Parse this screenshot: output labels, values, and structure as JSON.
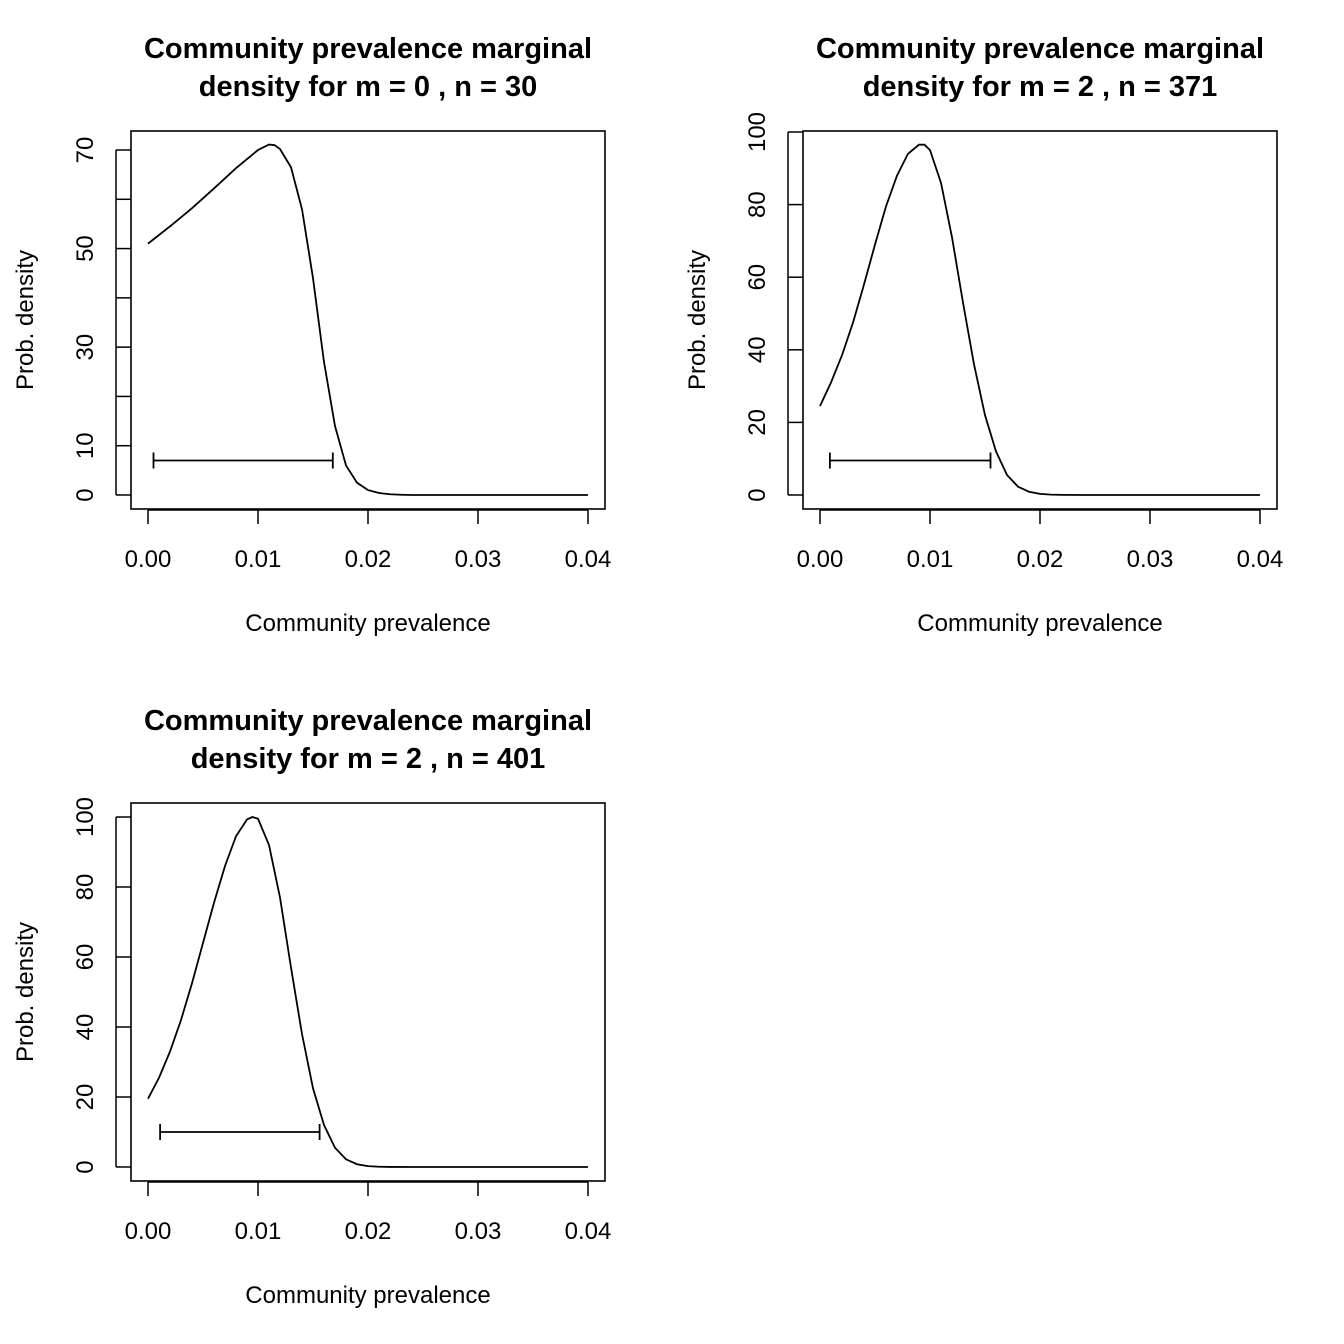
{
  "chart_data": [
    {
      "type": "line",
      "title_lines": [
        "Community prevalence marginal",
        "density for m = 0 , n = 30"
      ],
      "xlabel": "Community prevalence",
      "ylabel": "Prob. density",
      "xlim": [
        0.0,
        0.04
      ],
      "ylim": [
        0,
        70
      ],
      "xticks": [
        0.0,
        0.01,
        0.02,
        0.03,
        0.04
      ],
      "xtick_labels": [
        "0.00",
        "0.01",
        "0.02",
        "0.03",
        "0.04"
      ],
      "yticks": [
        0,
        10,
        20,
        30,
        40,
        50,
        60,
        70
      ],
      "ytick_labels": [
        "0",
        "10",
        "",
        "30",
        "",
        "50",
        "",
        "70"
      ],
      "series": [
        {
          "x": [
            0.0,
            0.002,
            0.004,
            0.006,
            0.008,
            0.01,
            0.011,
            0.0115,
            0.012,
            0.013,
            0.014,
            0.015,
            0.016,
            0.017,
            0.018,
            0.019,
            0.02,
            0.021,
            0.022,
            0.023,
            0.024,
            0.026,
            0.03,
            0.035,
            0.04
          ],
          "y": [
            51,
            54.5,
            58.2,
            62.2,
            66.3,
            70.0,
            71.1,
            71.0,
            70.2,
            66.5,
            58.0,
            44.0,
            27.0,
            14.0,
            6.0,
            2.5,
            1.0,
            0.4,
            0.15,
            0.05,
            0.0,
            0.0,
            0.0,
            0.0,
            0.0
          ]
        }
      ],
      "interval": {
        "lo": 0.0005,
        "hi": 0.0168,
        "y": 7
      }
    },
    {
      "type": "line",
      "title_lines": [
        "Community prevalence marginal",
        "density for m = 2 , n = 371"
      ],
      "xlabel": "Community prevalence",
      "ylabel": "Prob. density",
      "xlim": [
        0.0,
        0.04
      ],
      "ylim": [
        0,
        100
      ],
      "xticks": [
        0.0,
        0.01,
        0.02,
        0.03,
        0.04
      ],
      "xtick_labels": [
        "0.00",
        "0.01",
        "0.02",
        "0.03",
        "0.04"
      ],
      "yticks": [
        0,
        20,
        40,
        60,
        80,
        100
      ],
      "ytick_labels": [
        "0",
        "20",
        "40",
        "60",
        "80",
        "100"
      ],
      "series": [
        {
          "x": [
            0.0,
            0.001,
            0.002,
            0.003,
            0.004,
            0.005,
            0.006,
            0.007,
            0.008,
            0.009,
            0.0095,
            0.01,
            0.011,
            0.012,
            0.013,
            0.014,
            0.015,
            0.016,
            0.017,
            0.018,
            0.019,
            0.02,
            0.021,
            0.022,
            0.024,
            0.03,
            0.035,
            0.04
          ],
          "y": [
            24.5,
            31,
            38.5,
            47.5,
            58,
            69,
            79.5,
            88,
            94,
            96.5,
            96.5,
            95,
            86,
            71,
            53,
            36,
            22,
            12,
            5.5,
            2.3,
            0.9,
            0.3,
            0.1,
            0.03,
            0.0,
            0.0,
            0.0,
            0.0
          ]
        }
      ],
      "interval": {
        "lo": 0.0009,
        "hi": 0.0155,
        "y": 9.5
      }
    },
    {
      "type": "line",
      "title_lines": [
        "Community prevalence marginal",
        "density for m = 2 , n = 401"
      ],
      "xlabel": "Community prevalence",
      "ylabel": "Prob. density",
      "xlim": [
        0.0,
        0.04
      ],
      "ylim": [
        0,
        100
      ],
      "xticks": [
        0.0,
        0.01,
        0.02,
        0.03,
        0.04
      ],
      "xtick_labels": [
        "0.00",
        "0.01",
        "0.02",
        "0.03",
        "0.04"
      ],
      "yticks": [
        0,
        20,
        40,
        60,
        80,
        100
      ],
      "ytick_labels": [
        "0",
        "20",
        "40",
        "60",
        "80",
        "100"
      ],
      "series": [
        {
          "x": [
            0.0,
            0.001,
            0.002,
            0.003,
            0.004,
            0.005,
            0.006,
            0.007,
            0.008,
            0.009,
            0.0095,
            0.01,
            0.011,
            0.012,
            0.013,
            0.014,
            0.015,
            0.016,
            0.017,
            0.018,
            0.019,
            0.02,
            0.021,
            0.022,
            0.024,
            0.03,
            0.035,
            0.04
          ],
          "y": [
            19.5,
            25.5,
            33,
            42,
            52.5,
            64,
            75.5,
            86,
            94.5,
            99.3,
            100,
            99.5,
            92,
            77,
            57,
            38,
            22.5,
            12,
            5.5,
            2.2,
            0.8,
            0.25,
            0.08,
            0.02,
            0.0,
            0.0,
            0.0,
            0.0
          ]
        }
      ],
      "interval": {
        "lo": 0.0011,
        "hi": 0.0156,
        "y": 10
      }
    }
  ]
}
